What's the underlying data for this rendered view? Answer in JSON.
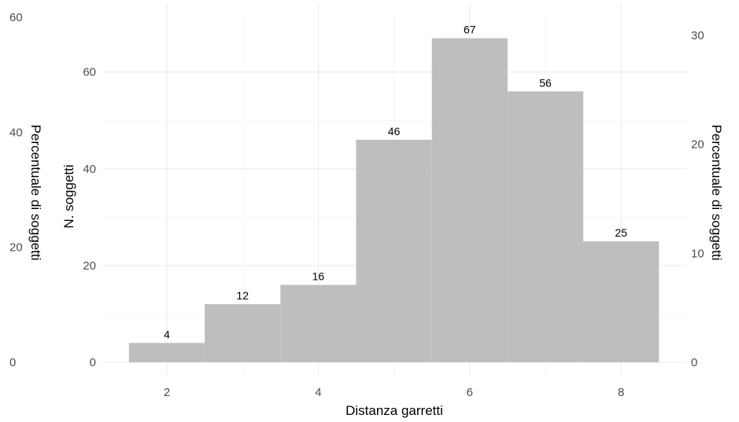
{
  "chart_data": {
    "type": "bar",
    "categories": [
      "2",
      "3",
      "4",
      "5",
      "6",
      "7",
      "8"
    ],
    "x": [
      2,
      3,
      4,
      5,
      6,
      7,
      8
    ],
    "values": [
      4,
      12,
      16,
      46,
      67,
      56,
      25
    ],
    "bar_labels": [
      "4",
      "12",
      "16",
      "46",
      "67",
      "56",
      "25"
    ],
    "xlabel": "Distanza garretti",
    "ylabel": "N. soggetti",
    "ylabel_secondary": "Percentuale di soggetti",
    "xlim": [
      1.5,
      8.5
    ],
    "ylim": [
      0,
      67
    ],
    "x_ticks": [
      "2",
      "4",
      "6",
      "8"
    ],
    "y_ticks": [
      "0",
      "20",
      "40",
      "60"
    ],
    "y2_ticks": [
      "0",
      "10",
      "20",
      "30"
    ],
    "outer_y_ticks": [
      "0",
      "20",
      "40",
      "60"
    ],
    "grid": true,
    "bar_color": "#bebebe"
  }
}
